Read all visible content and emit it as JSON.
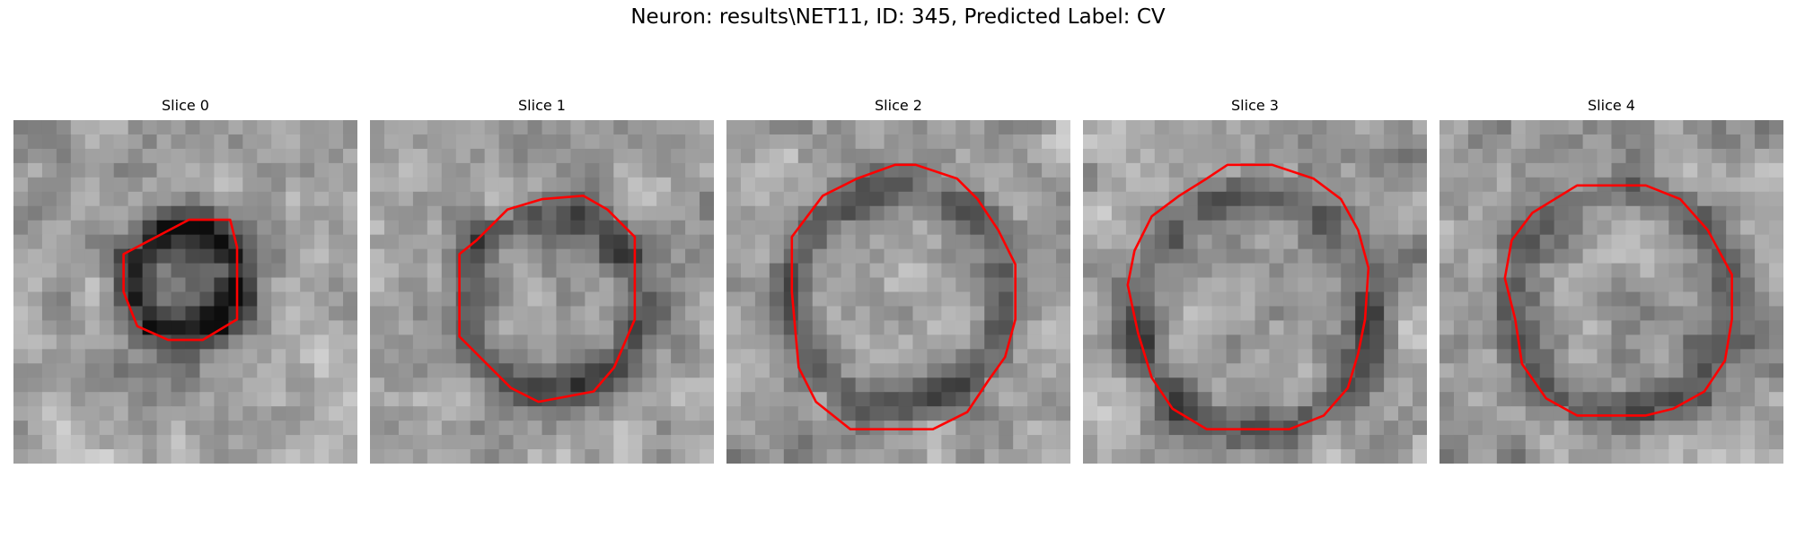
{
  "title": "Neuron: results\\NET11, ID: 345, Predicted Label: CV",
  "contour_color": "#ff0000",
  "grid_size": 24,
  "slices": [
    {
      "label": "Slice 0",
      "seed": 11,
      "center": [
        0.5,
        0.47
      ],
      "radius": 0.17,
      "contrast": 0.28,
      "contour": [
        [
          0.63,
          0.29
        ],
        [
          0.51,
          0.29
        ],
        [
          0.32,
          0.39
        ],
        [
          0.32,
          0.5
        ],
        [
          0.36,
          0.6
        ],
        [
          0.45,
          0.64
        ],
        [
          0.55,
          0.64
        ],
        [
          0.65,
          0.58
        ],
        [
          0.65,
          0.37
        ]
      ]
    },
    {
      "label": "Slice 1",
      "seed": 23,
      "center": [
        0.53,
        0.53
      ],
      "radius": 0.26,
      "contrast": 0.22,
      "contour": [
        [
          0.4,
          0.26
        ],
        [
          0.5,
          0.23
        ],
        [
          0.62,
          0.22
        ],
        [
          0.69,
          0.26
        ],
        [
          0.77,
          0.34
        ],
        [
          0.77,
          0.58
        ],
        [
          0.74,
          0.65
        ],
        [
          0.71,
          0.72
        ],
        [
          0.65,
          0.79
        ],
        [
          0.49,
          0.82
        ],
        [
          0.41,
          0.78
        ],
        [
          0.34,
          0.71
        ],
        [
          0.26,
          0.63
        ],
        [
          0.26,
          0.39
        ],
        [
          0.31,
          0.35
        ]
      ]
    },
    {
      "label": "Slice 2",
      "seed": 37,
      "center": [
        0.5,
        0.51
      ],
      "radius": 0.31,
      "contrast": 0.2,
      "contour": [
        [
          0.49,
          0.13
        ],
        [
          0.55,
          0.13
        ],
        [
          0.67,
          0.17
        ],
        [
          0.73,
          0.23
        ],
        [
          0.79,
          0.32
        ],
        [
          0.84,
          0.42
        ],
        [
          0.84,
          0.58
        ],
        [
          0.81,
          0.69
        ],
        [
          0.76,
          0.76
        ],
        [
          0.7,
          0.85
        ],
        [
          0.6,
          0.9
        ],
        [
          0.36,
          0.9
        ],
        [
          0.26,
          0.82
        ],
        [
          0.21,
          0.72
        ],
        [
          0.19,
          0.5
        ],
        [
          0.19,
          0.34
        ],
        [
          0.28,
          0.22
        ],
        [
          0.38,
          0.17
        ]
      ]
    },
    {
      "label": "Slice 3",
      "seed": 51,
      "center": [
        0.5,
        0.56
      ],
      "radius": 0.34,
      "contrast": 0.2,
      "contour": [
        [
          0.36,
          0.17
        ],
        [
          0.42,
          0.13
        ],
        [
          0.55,
          0.13
        ],
        [
          0.67,
          0.17
        ],
        [
          0.75,
          0.23
        ],
        [
          0.8,
          0.32
        ],
        [
          0.83,
          0.43
        ],
        [
          0.82,
          0.58
        ],
        [
          0.8,
          0.68
        ],
        [
          0.77,
          0.78
        ],
        [
          0.7,
          0.86
        ],
        [
          0.6,
          0.9
        ],
        [
          0.36,
          0.9
        ],
        [
          0.26,
          0.84
        ],
        [
          0.2,
          0.75
        ],
        [
          0.16,
          0.62
        ],
        [
          0.13,
          0.48
        ],
        [
          0.15,
          0.38
        ],
        [
          0.2,
          0.28
        ],
        [
          0.28,
          0.22
        ]
      ]
    },
    {
      "label": "Slice 4",
      "seed": 67,
      "center": [
        0.52,
        0.53
      ],
      "radius": 0.32,
      "contrast": 0.18,
      "contour": [
        [
          0.4,
          0.19
        ],
        [
          0.6,
          0.19
        ],
        [
          0.7,
          0.23
        ],
        [
          0.78,
          0.32
        ],
        [
          0.85,
          0.45
        ],
        [
          0.85,
          0.58
        ],
        [
          0.83,
          0.7
        ],
        [
          0.77,
          0.79
        ],
        [
          0.68,
          0.84
        ],
        [
          0.6,
          0.86
        ],
        [
          0.4,
          0.86
        ],
        [
          0.31,
          0.81
        ],
        [
          0.24,
          0.71
        ],
        [
          0.22,
          0.58
        ],
        [
          0.19,
          0.46
        ],
        [
          0.21,
          0.35
        ],
        [
          0.27,
          0.27
        ]
      ]
    }
  ]
}
